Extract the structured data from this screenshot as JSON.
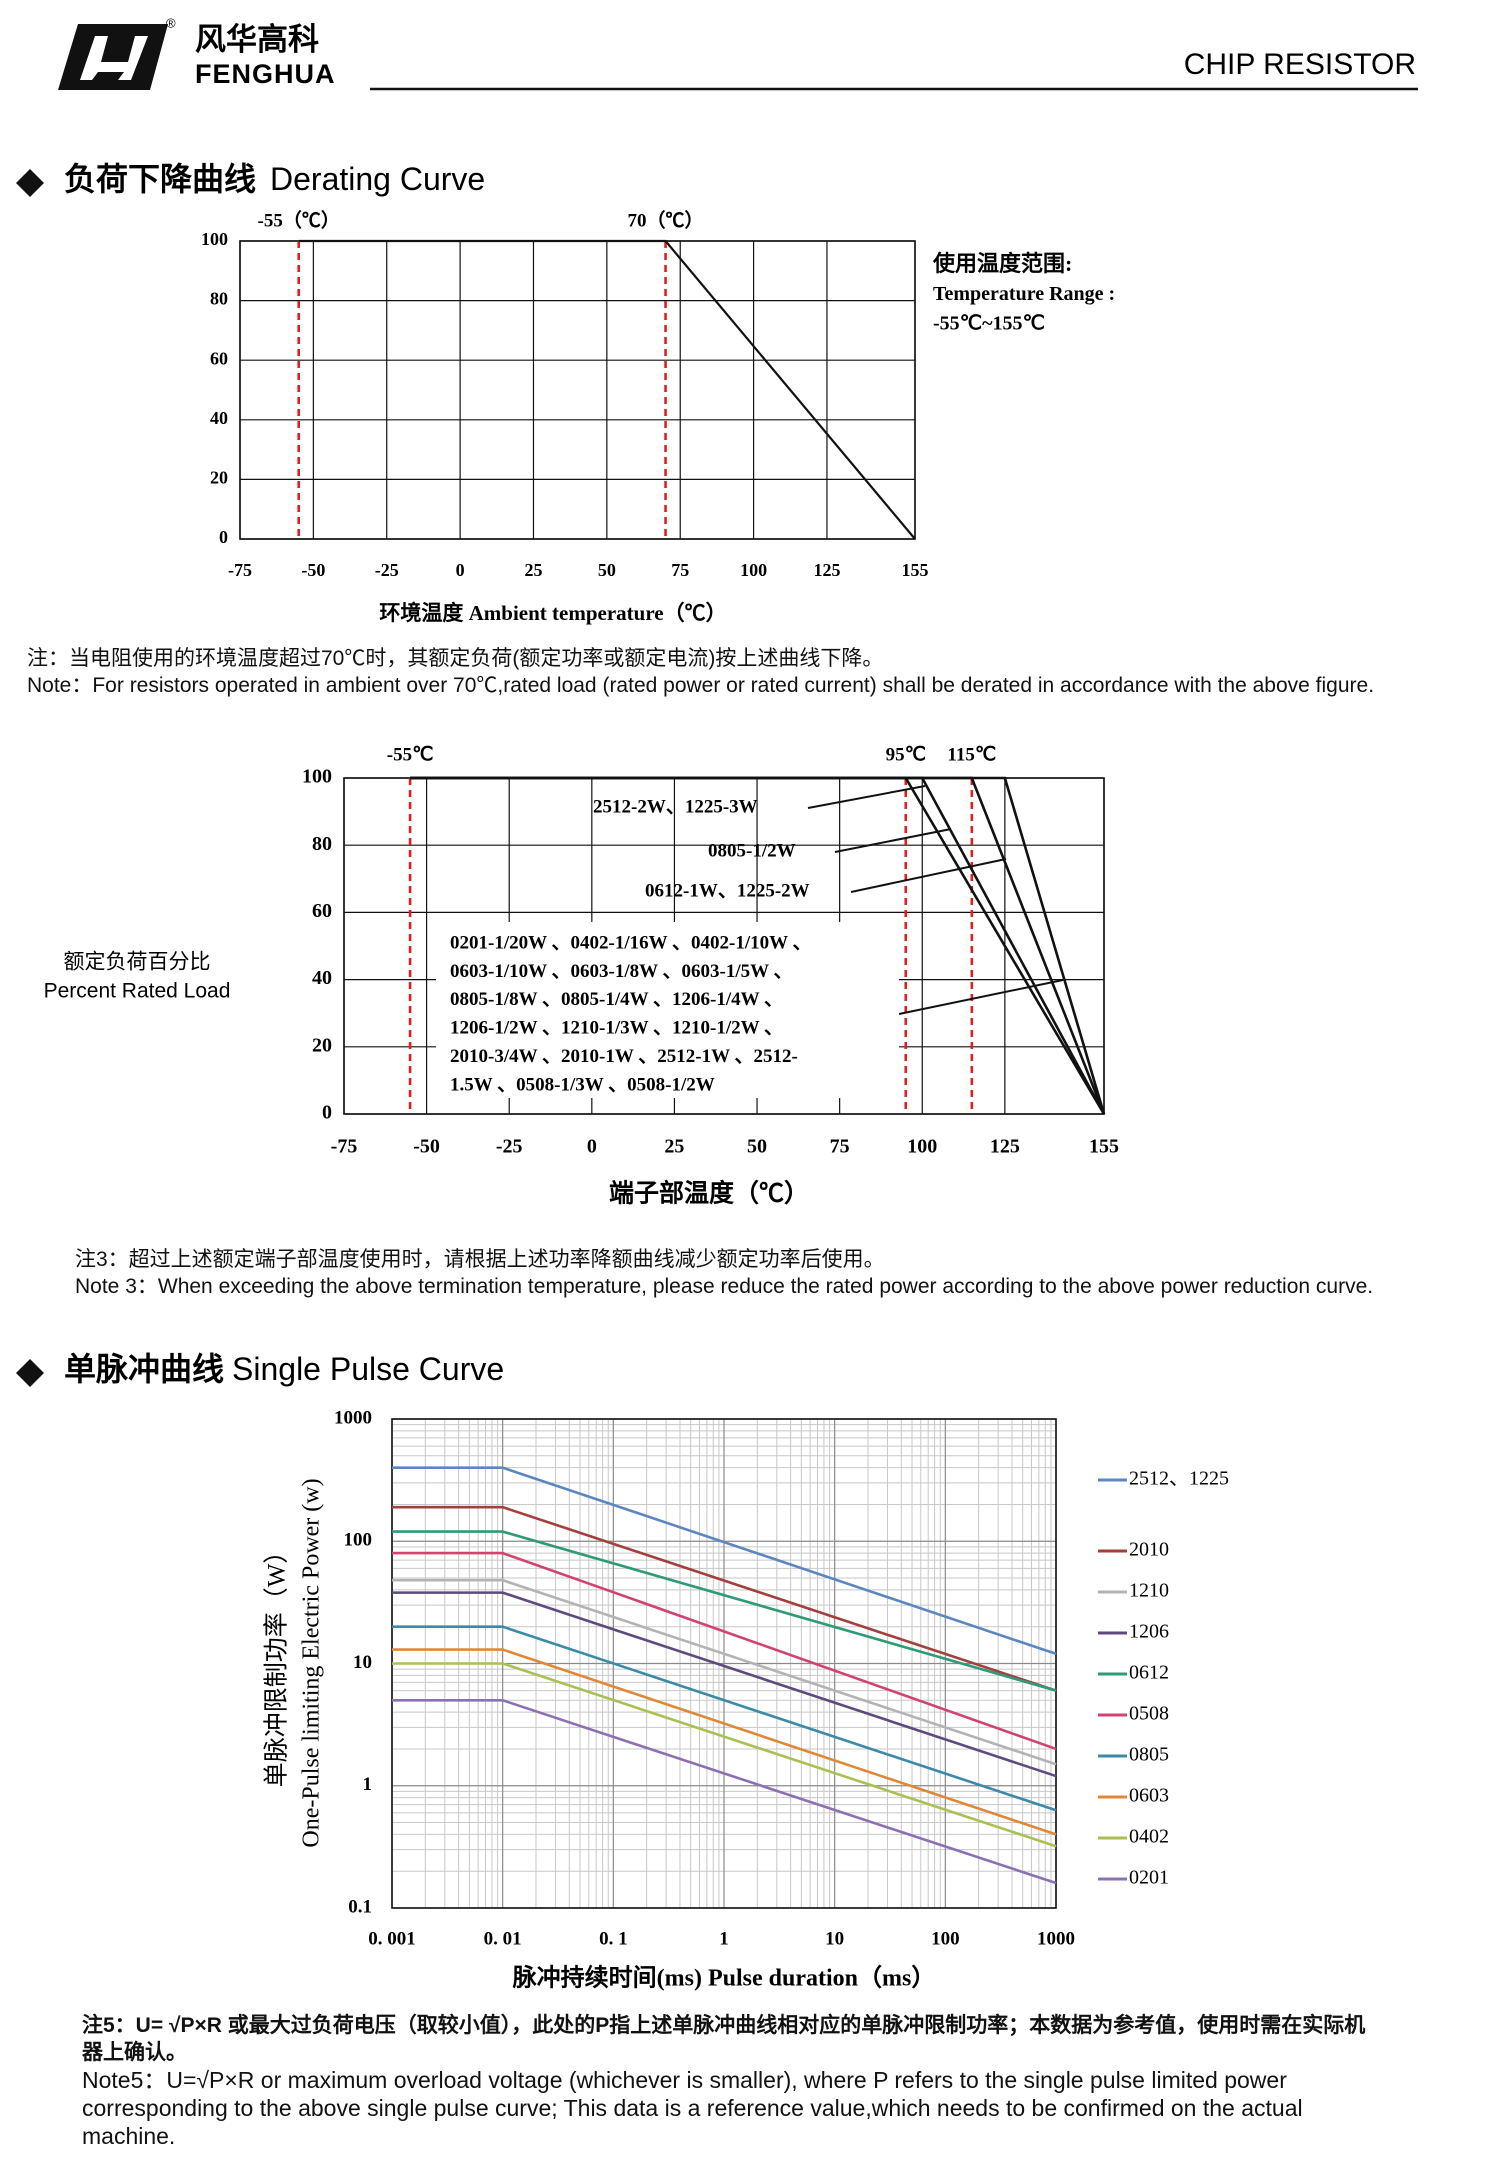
{
  "header": {
    "logo_cn": "风华高科",
    "logo_en": "FENGHUA",
    "logo_mark": "®",
    "title": "CHIP RESISTOR"
  },
  "sections": [
    {
      "heading_cn": "负荷下降曲线",
      "heading_en": "Derating Curve"
    },
    {
      "heading_cn": "单脉冲曲线",
      "heading_en": "Single Pulse Curve"
    }
  ],
  "chart_data": [
    {
      "type": "line",
      "x_label": "环境温度 Ambient temperature（℃）",
      "xlim": [
        -75,
        155
      ],
      "xticks": [
        -75,
        -50,
        -25,
        0,
        25,
        50,
        75,
        100,
        125,
        155
      ],
      "ylim": [
        0,
        100
      ],
      "yticks": [
        0,
        20,
        40,
        60,
        80,
        100
      ],
      "grid": true,
      "markers": [
        {
          "x": -55,
          "label": "-55（℃）"
        },
        {
          "x": 70,
          "label": "70（℃）"
        }
      ],
      "marker_color": "#e02020",
      "series": [
        {
          "x": [
            -55,
            70,
            155
          ],
          "values": [
            100,
            100,
            0
          ],
          "color": "#111111"
        }
      ],
      "side_note": [
        "使用温度范围:",
        "Temperature Range :",
        "-55℃~155℃"
      ]
    },
    {
      "type": "line",
      "y_label": [
        "额定负荷百分比",
        "Percent Rated Load"
      ],
      "x_label": "端子部温度（℃）",
      "xlim": [
        -75,
        155
      ],
      "xticks": [
        -75,
        -50,
        -25,
        0,
        25,
        50,
        75,
        100,
        125,
        155
      ],
      "ylim": [
        0,
        100
      ],
      "yticks": [
        0,
        20,
        40,
        60,
        80,
        100
      ],
      "grid": true,
      "markers": [
        {
          "x": -55,
          "label": "-55℃"
        },
        {
          "x": 95,
          "label": "95℃"
        },
        {
          "x": 115,
          "label": "115℃"
        }
      ],
      "marker_color": "#e02020",
      "series": [
        {
          "label_lines": [
            "2512-2W、1225-3W"
          ],
          "x": [
            -55,
            95,
            155
          ],
          "values": [
            100,
            100,
            0
          ],
          "color": "#111111"
        },
        {
          "label_lines": [
            "0805-1/2W"
          ],
          "x": [
            -55,
            100,
            155
          ],
          "values": [
            100,
            100,
            0
          ],
          "color": "#111111"
        },
        {
          "label_lines": [
            "0612-1W、1225-2W"
          ],
          "x": [
            -55,
            115,
            155
          ],
          "values": [
            100,
            100,
            0
          ],
          "color": "#111111"
        },
        {
          "label_lines": [
            "0201-1/20W 、0402-1/16W 、0402-1/10W 、",
            "0603-1/10W 、0603-1/8W 、0603-1/5W 、",
            "0805-1/8W 、0805-1/4W 、1206-1/4W 、",
            "1206-1/2W 、1210-1/3W 、1210-1/2W 、",
            "2010-3/4W 、2010-1W 、2512-1W 、2512-",
            "1.5W 、0508-1/3W 、0508-1/2W"
          ],
          "x": [
            -55,
            125,
            155
          ],
          "values": [
            100,
            100,
            0
          ],
          "color": "#111111"
        }
      ]
    },
    {
      "type": "line",
      "log_x": true,
      "log_y": true,
      "y_label": [
        "单脉冲限制功率（W）",
        "One-Pulse limiting Electric Power (w)"
      ],
      "x_label": "脉冲持续时间(ms) Pulse duration（ms）",
      "xlim": [
        0.001,
        1000
      ],
      "xticks": [
        {
          "value": 0.001,
          "label": "0. 001"
        },
        {
          "value": 0.01,
          "label": "0. 01"
        },
        {
          "value": 0.1,
          "label": "0. 1"
        },
        1,
        10,
        100,
        1000
      ],
      "ylim": [
        0.1,
        1000
      ],
      "yticks": [
        0.1,
        1,
        10,
        100,
        1000
      ],
      "grid": true,
      "minor_grid": true,
      "series": [
        {
          "name": "2512、1225",
          "color": "#5b86c0",
          "x": [
            0.001,
            0.01,
            1000
          ],
          "values": [
            400,
            400,
            12
          ]
        },
        {
          "name": "2010",
          "color": "#a33f3c",
          "x": [
            0.001,
            0.01,
            1000
          ],
          "values": [
            190,
            190,
            6
          ]
        },
        {
          "name": "1210",
          "color": "#b3b3b3",
          "x": [
            0.001,
            0.01,
            1000
          ],
          "values": [
            48,
            48,
            1.5
          ]
        },
        {
          "name": "1206",
          "color": "#5e4a7c",
          "x": [
            0.001,
            0.01,
            1000
          ],
          "values": [
            38,
            38,
            1.2
          ]
        },
        {
          "name": "0612",
          "color": "#2f9a78",
          "x": [
            0.001,
            0.01,
            1000
          ],
          "values": [
            120,
            120,
            6
          ]
        },
        {
          "name": "0508",
          "color": "#d24470",
          "x": [
            0.001,
            0.01,
            1000
          ],
          "values": [
            80,
            80,
            2
          ]
        },
        {
          "name": "0805",
          "color": "#3b8aa6",
          "x": [
            0.001,
            0.01,
            1000
          ],
          "values": [
            20,
            20,
            0.63
          ]
        },
        {
          "name": "0603",
          "color": "#e08838",
          "x": [
            0.001,
            0.01,
            1000
          ],
          "values": [
            13,
            13,
            0.4
          ]
        },
        {
          "name": "0402",
          "color": "#a9c153",
          "x": [
            0.001,
            0.01,
            1000
          ],
          "values": [
            10,
            10,
            0.32
          ]
        },
        {
          "name": "0201",
          "color": "#8b70b4",
          "x": [
            0.001,
            0.01,
            1000
          ],
          "values": [
            5,
            5,
            0.16
          ]
        }
      ]
    }
  ],
  "notes": [
    {
      "cn": "注：当电阻使用的环境温度超过70℃时，其额定负荷(额定功率或额定电流)按上述曲线下降。",
      "en": "Note：For resistors operated in ambient over 70℃,rated load (rated power or rated current) shall be derated in accordance with the above figure."
    },
    {
      "cn": "注3：超过上述额定端子部温度使用时，请根据上述功率降额曲线减少额定功率后使用。",
      "en": "Note 3：When exceeding the above termination temperature, please reduce the rated power according to the above power reduction curve."
    },
    {
      "cn": "注5：U= √P×R  或最大过负荷电压（取较小值），此处的P指上述单脉冲曲线相对应的单脉冲限制功率；本数据为参考值，使用时需在实际机器上确认。",
      "en": "Note5：U=√P×R  or maximum overload voltage (whichever is smaller), where P refers to the single pulse limited power corresponding to the above single pulse curve; This data is a reference value,which needs to be confirmed on the actual machine."
    }
  ]
}
